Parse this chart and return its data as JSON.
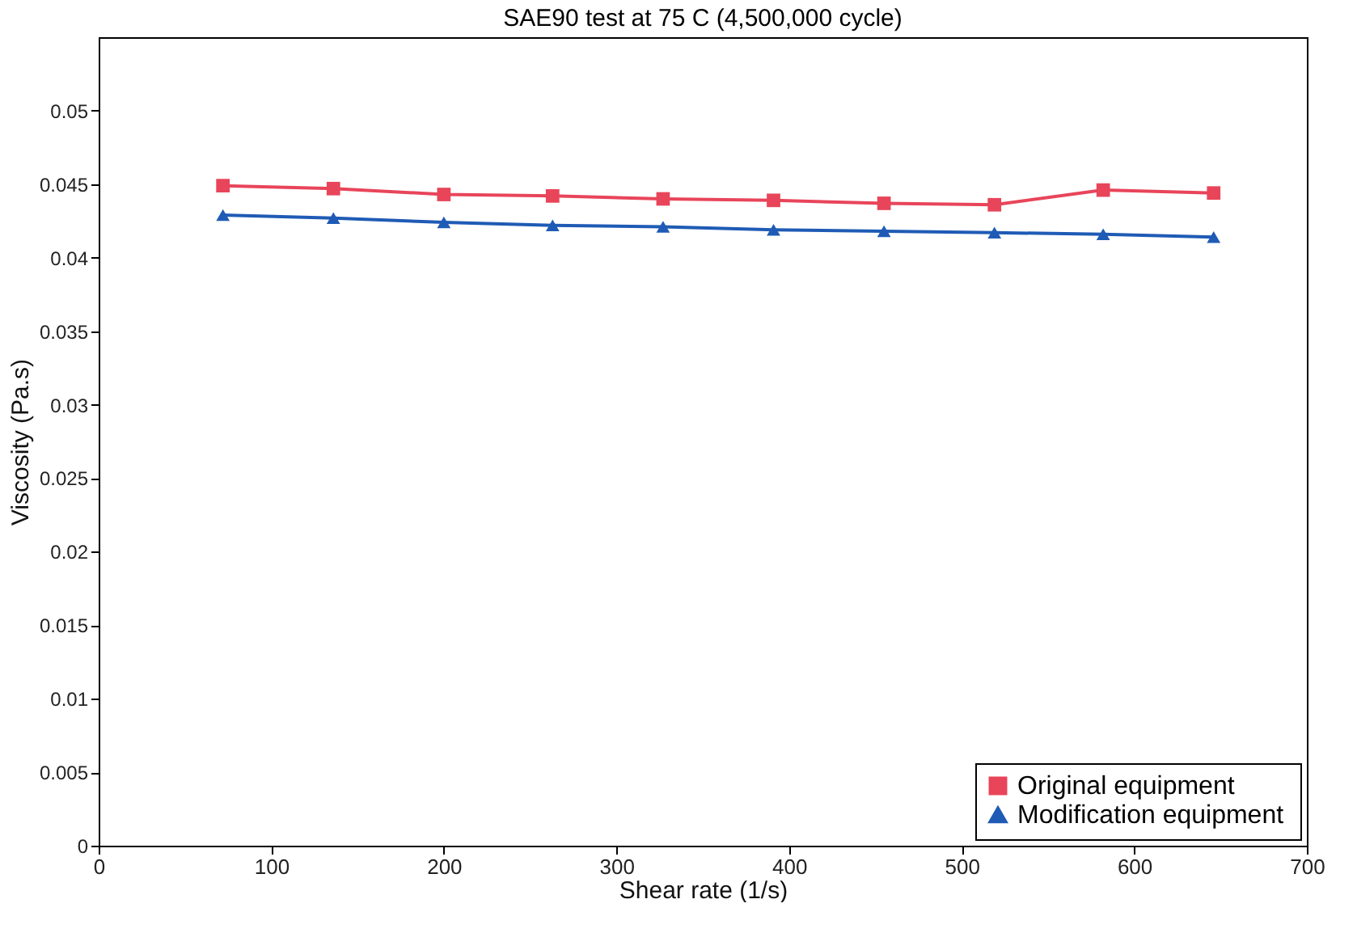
{
  "chart_data": {
    "type": "line",
    "title": "SAE90 test at 75 C (4,500,000 cycle)",
    "xlabel": "Shear rate (1/s)",
    "ylabel": "Viscosity (Pa.s)",
    "x": [
      72,
      136,
      200,
      263,
      327,
      391,
      455,
      519,
      582,
      646
    ],
    "series": [
      {
        "name": "Original       equipment",
        "color": "#e8455a",
        "marker": "square",
        "values": [
          0.0449,
          0.0447,
          0.0443,
          0.0442,
          0.044,
          0.0439,
          0.0437,
          0.0436,
          0.0446,
          0.0444
        ]
      },
      {
        "name": "Modification  equipment",
        "color": "#1f5bb5",
        "marker": "triangle",
        "values": [
          0.0429,
          0.0427,
          0.0424,
          0.0422,
          0.0421,
          0.0419,
          0.0418,
          0.0417,
          0.0416,
          0.0414
        ]
      }
    ],
    "xlim": [
      0,
      700
    ],
    "xticks": [
      0,
      100,
      200,
      300,
      400,
      500,
      600,
      700
    ],
    "ylim": [
      0,
      0.055
    ],
    "yticks": [
      0,
      0.005,
      0.01,
      0.015,
      0.02,
      0.025,
      0.03,
      0.035,
      0.04,
      0.045,
      0.05
    ],
    "grid": false,
    "legend": "bottom right",
    "line_style": "solid"
  }
}
